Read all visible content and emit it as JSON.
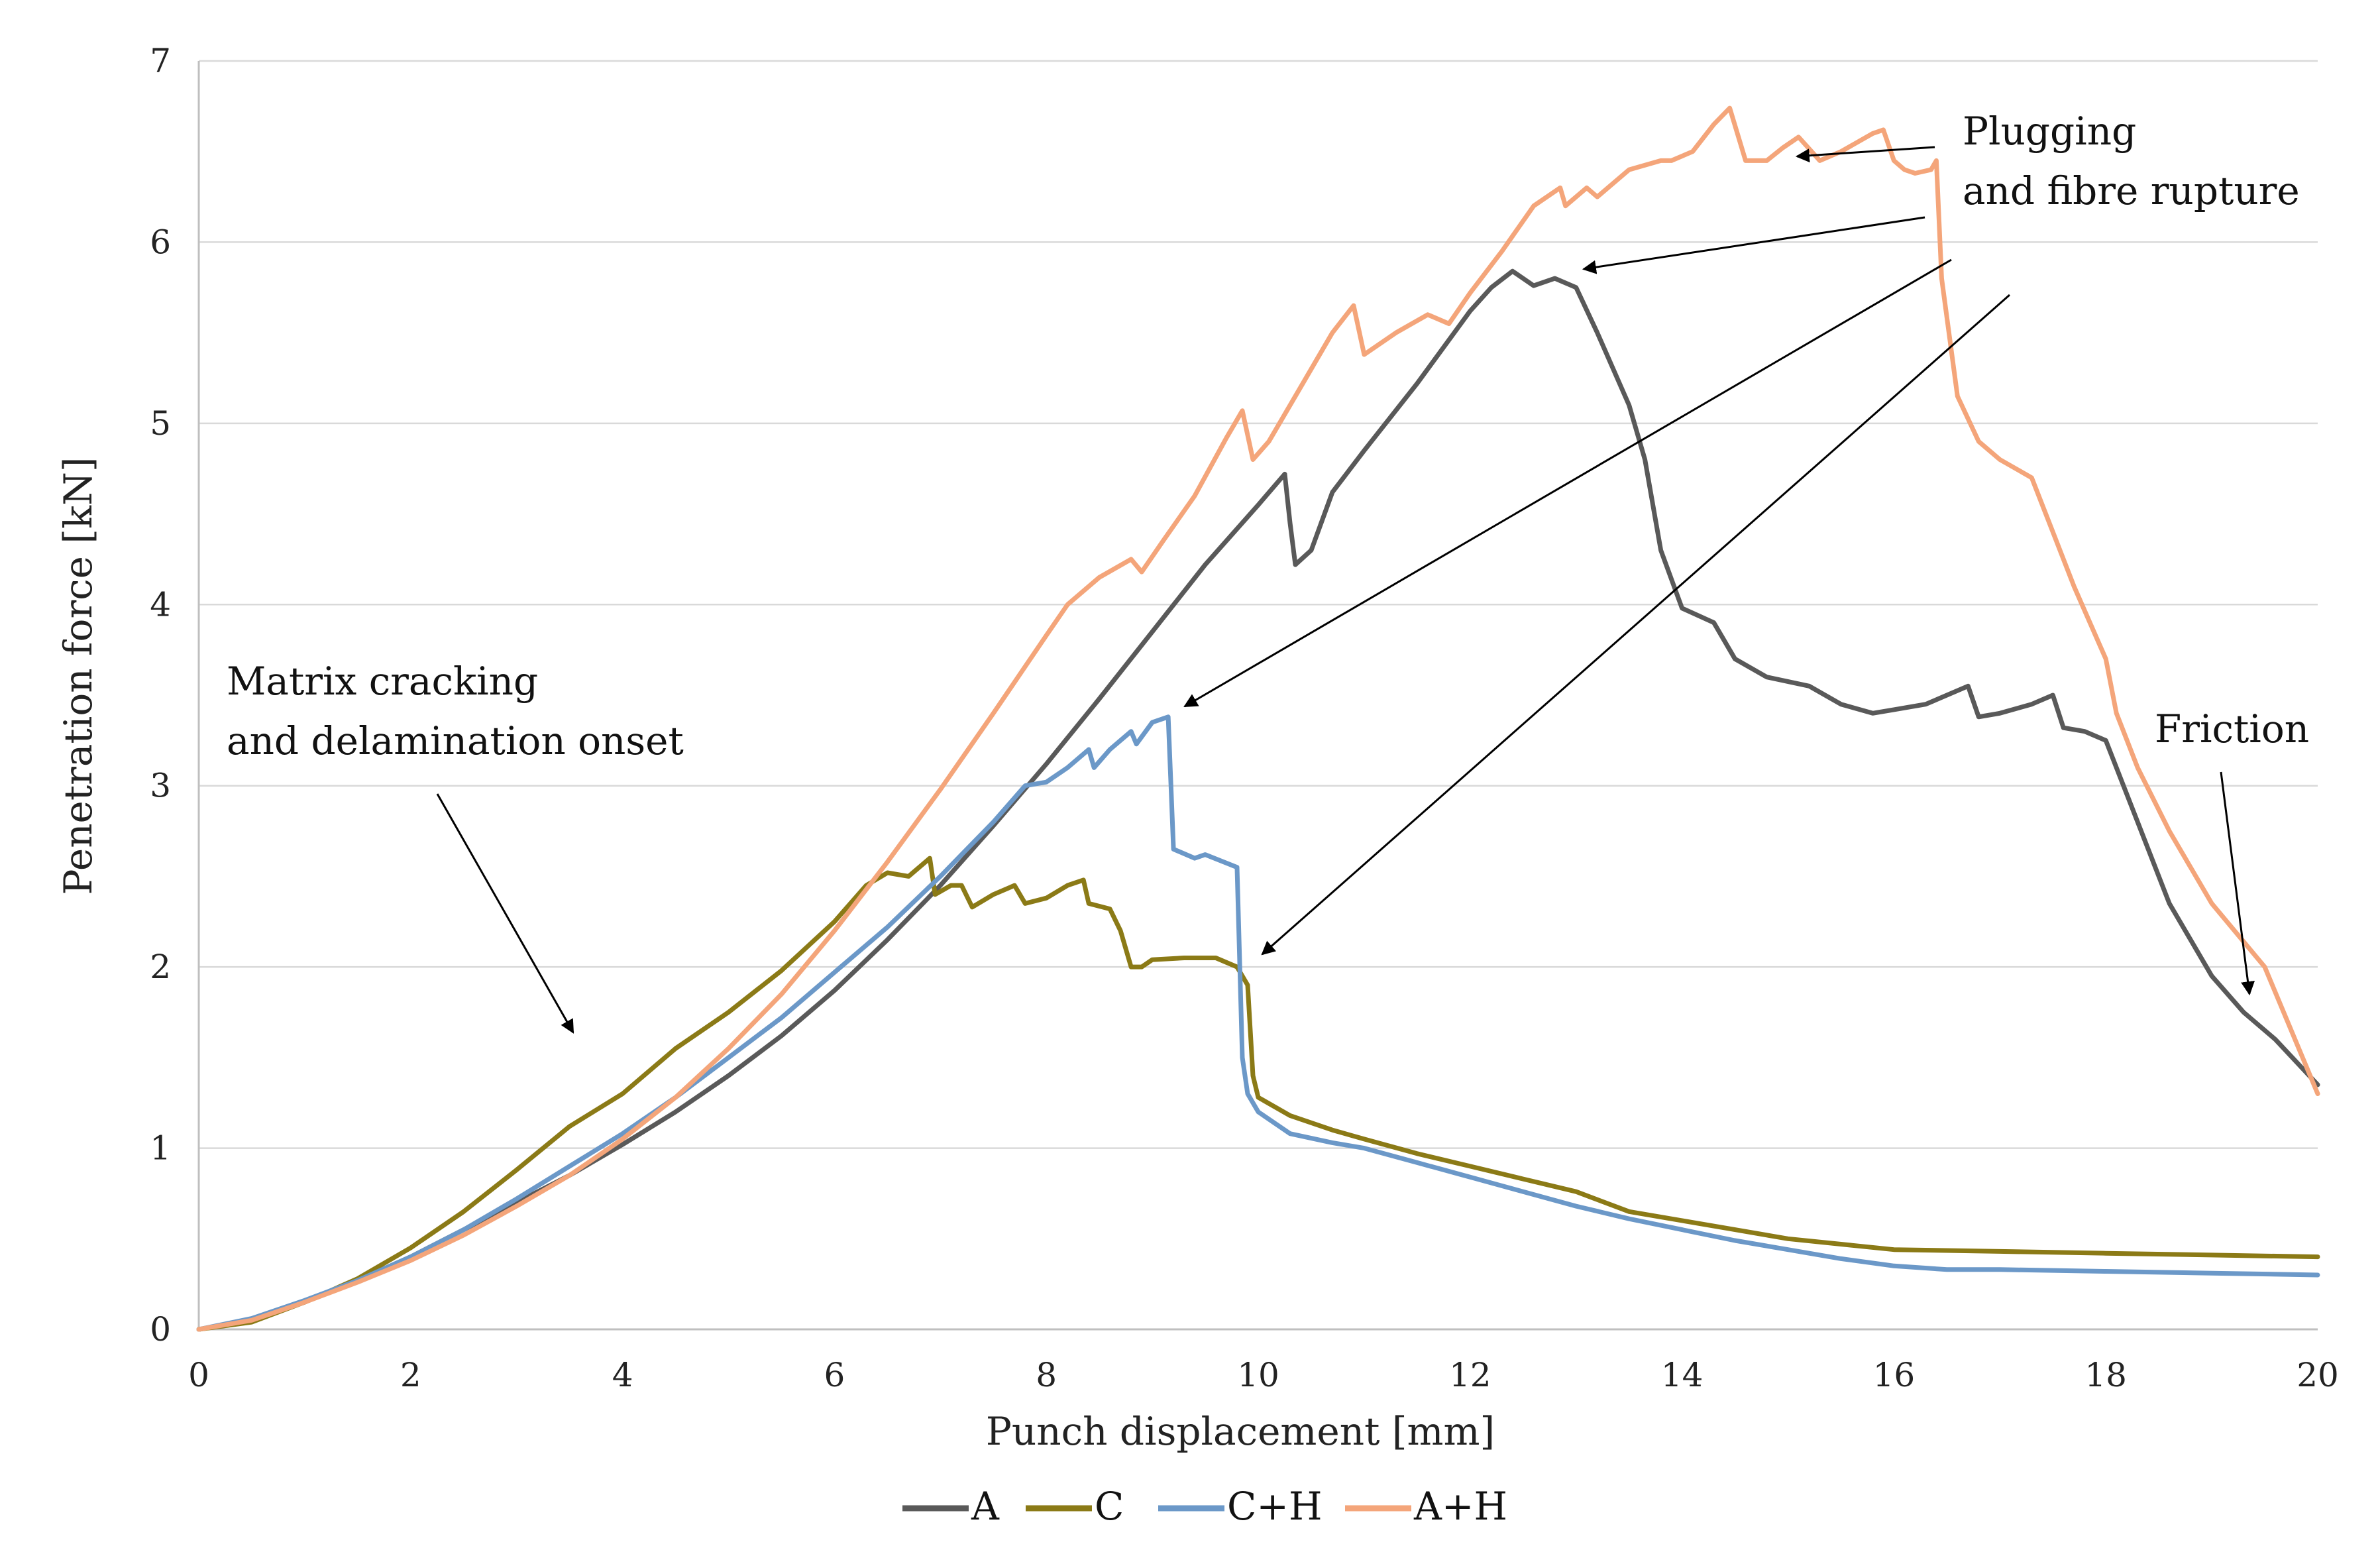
{
  "chart_data": {
    "type": "line",
    "title": "",
    "xlabel": "Punch displacement [mm]",
    "ylabel": "Penetration force [kN]",
    "xlim": [
      0,
      20
    ],
    "ylim": [
      0,
      7
    ],
    "xticks": [
      "0",
      "2",
      "4",
      "6",
      "8",
      "10",
      "12",
      "14",
      "16",
      "18",
      "20"
    ],
    "yticks": [
      "0",
      "1",
      "2",
      "3",
      "4",
      "5",
      "6",
      "7"
    ],
    "grid": "horizontal",
    "legend_position": "bottom",
    "series": [
      {
        "name": "A",
        "color": "#595959",
        "points": [
          [
            0,
            0
          ],
          [
            0.5,
            0.05
          ],
          [
            1,
            0.15
          ],
          [
            1.5,
            0.27
          ],
          [
            2,
            0.4
          ],
          [
            2.5,
            0.55
          ],
          [
            3,
            0.7
          ],
          [
            3.5,
            0.85
          ],
          [
            4,
            1.02
          ],
          [
            4.5,
            1.2
          ],
          [
            5,
            1.4
          ],
          [
            5.5,
            1.62
          ],
          [
            6,
            1.87
          ],
          [
            6.5,
            2.15
          ],
          [
            7,
            2.45
          ],
          [
            7.5,
            2.78
          ],
          [
            8,
            3.12
          ],
          [
            8.5,
            3.48
          ],
          [
            9,
            3.85
          ],
          [
            9.5,
            4.22
          ],
          [
            10,
            4.55
          ],
          [
            10.25,
            4.72
          ],
          [
            10.3,
            4.45
          ],
          [
            10.35,
            4.22
          ],
          [
            10.5,
            4.3
          ],
          [
            10.7,
            4.62
          ],
          [
            11,
            4.85
          ],
          [
            11.5,
            5.22
          ],
          [
            12,
            5.62
          ],
          [
            12.2,
            5.75
          ],
          [
            12.4,
            5.84
          ],
          [
            12.6,
            5.76
          ],
          [
            12.8,
            5.8
          ],
          [
            13,
            5.75
          ],
          [
            13.2,
            5.5
          ],
          [
            13.5,
            5.1
          ],
          [
            13.65,
            4.8
          ],
          [
            13.8,
            4.3
          ],
          [
            14,
            3.98
          ],
          [
            14.3,
            3.9
          ],
          [
            14.5,
            3.7
          ],
          [
            14.8,
            3.6
          ],
          [
            15.2,
            3.55
          ],
          [
            15.5,
            3.45
          ],
          [
            15.8,
            3.4
          ],
          [
            16,
            3.42
          ],
          [
            16.3,
            3.45
          ],
          [
            16.7,
            3.55
          ],
          [
            16.8,
            3.38
          ],
          [
            17,
            3.4
          ],
          [
            17.3,
            3.45
          ],
          [
            17.5,
            3.5
          ],
          [
            17.6,
            3.32
          ],
          [
            17.8,
            3.3
          ],
          [
            18,
            3.25
          ],
          [
            18.3,
            2.8
          ],
          [
            18.6,
            2.35
          ],
          [
            19,
            1.95
          ],
          [
            19.3,
            1.75
          ],
          [
            19.6,
            1.6
          ],
          [
            20,
            1.35
          ]
        ]
      },
      {
        "name": "C",
        "color": "#8b7a16",
        "points": [
          [
            0,
            0
          ],
          [
            0.5,
            0.04
          ],
          [
            1,
            0.15
          ],
          [
            1.5,
            0.28
          ],
          [
            2,
            0.45
          ],
          [
            2.5,
            0.65
          ],
          [
            3,
            0.88
          ],
          [
            3.5,
            1.12
          ],
          [
            4,
            1.3
          ],
          [
            4.5,
            1.55
          ],
          [
            5,
            1.75
          ],
          [
            5.5,
            1.98
          ],
          [
            6,
            2.25
          ],
          [
            6.3,
            2.45
          ],
          [
            6.5,
            2.52
          ],
          [
            6.7,
            2.5
          ],
          [
            6.9,
            2.6
          ],
          [
            6.95,
            2.4
          ],
          [
            7.1,
            2.45
          ],
          [
            7.2,
            2.45
          ],
          [
            7.3,
            2.33
          ],
          [
            7.5,
            2.4
          ],
          [
            7.7,
            2.45
          ],
          [
            7.8,
            2.35
          ],
          [
            8,
            2.38
          ],
          [
            8.2,
            2.45
          ],
          [
            8.35,
            2.48
          ],
          [
            8.4,
            2.35
          ],
          [
            8.6,
            2.32
          ],
          [
            8.7,
            2.2
          ],
          [
            8.8,
            2.0
          ],
          [
            8.9,
            2.0
          ],
          [
            9,
            2.04
          ],
          [
            9.3,
            2.05
          ],
          [
            9.6,
            2.05
          ],
          [
            9.8,
            2.0
          ],
          [
            9.9,
            1.9
          ],
          [
            9.95,
            1.4
          ],
          [
            10,
            1.28
          ],
          [
            10.3,
            1.18
          ],
          [
            10.7,
            1.1
          ],
          [
            11,
            1.05
          ],
          [
            11.5,
            0.97
          ],
          [
            12,
            0.9
          ],
          [
            12.5,
            0.83
          ],
          [
            13,
            0.76
          ],
          [
            13.5,
            0.65
          ],
          [
            14,
            0.6
          ],
          [
            14.5,
            0.55
          ],
          [
            15,
            0.5
          ],
          [
            15.5,
            0.47
          ],
          [
            16,
            0.44
          ],
          [
            17,
            0.43
          ],
          [
            18,
            0.42
          ],
          [
            19,
            0.41
          ],
          [
            20,
            0.4
          ]
        ]
      },
      {
        "name": "C+H",
        "color": "#6b98c8",
        "points": [
          [
            0,
            0
          ],
          [
            0.5,
            0.06
          ],
          [
            1,
            0.16
          ],
          [
            1.5,
            0.27
          ],
          [
            2,
            0.4
          ],
          [
            2.5,
            0.55
          ],
          [
            3,
            0.72
          ],
          [
            3.5,
            0.9
          ],
          [
            4,
            1.08
          ],
          [
            4.5,
            1.28
          ],
          [
            5,
            1.5
          ],
          [
            5.5,
            1.72
          ],
          [
            6,
            1.97
          ],
          [
            6.5,
            2.22
          ],
          [
            7,
            2.5
          ],
          [
            7.5,
            2.8
          ],
          [
            7.8,
            3.0
          ],
          [
            8,
            3.02
          ],
          [
            8.2,
            3.1
          ],
          [
            8.4,
            3.2
          ],
          [
            8.45,
            3.1
          ],
          [
            8.6,
            3.2
          ],
          [
            8.8,
            3.3
          ],
          [
            8.85,
            3.23
          ],
          [
            9,
            3.35
          ],
          [
            9.15,
            3.38
          ],
          [
            9.2,
            2.65
          ],
          [
            9.4,
            2.6
          ],
          [
            9.5,
            2.62
          ],
          [
            9.8,
            2.55
          ],
          [
            9.85,
            1.5
          ],
          [
            9.9,
            1.3
          ],
          [
            10,
            1.2
          ],
          [
            10.3,
            1.08
          ],
          [
            10.7,
            1.03
          ],
          [
            11,
            1.0
          ],
          [
            11.5,
            0.92
          ],
          [
            12,
            0.84
          ],
          [
            12.5,
            0.76
          ],
          [
            13,
            0.68
          ],
          [
            13.5,
            0.61
          ],
          [
            14,
            0.55
          ],
          [
            14.5,
            0.49
          ],
          [
            15,
            0.44
          ],
          [
            15.5,
            0.39
          ],
          [
            16,
            0.35
          ],
          [
            16.5,
            0.33
          ],
          [
            17,
            0.33
          ],
          [
            18,
            0.32
          ],
          [
            19,
            0.31
          ],
          [
            20,
            0.3
          ]
        ]
      },
      {
        "name": "A+H",
        "color": "#f4a57a",
        "points": [
          [
            0,
            0
          ],
          [
            0.5,
            0.05
          ],
          [
            1,
            0.15
          ],
          [
            1.5,
            0.26
          ],
          [
            2,
            0.38
          ],
          [
            2.5,
            0.52
          ],
          [
            3,
            0.68
          ],
          [
            3.5,
            0.85
          ],
          [
            4,
            1.05
          ],
          [
            4.5,
            1.28
          ],
          [
            5,
            1.55
          ],
          [
            5.5,
            1.85
          ],
          [
            6,
            2.2
          ],
          [
            6.5,
            2.58
          ],
          [
            7,
            2.98
          ],
          [
            7.5,
            3.4
          ],
          [
            8,
            3.83
          ],
          [
            8.2,
            4.0
          ],
          [
            8.5,
            4.15
          ],
          [
            8.8,
            4.25
          ],
          [
            8.9,
            4.18
          ],
          [
            9.1,
            4.35
          ],
          [
            9.4,
            4.6
          ],
          [
            9.7,
            4.92
          ],
          [
            9.85,
            5.07
          ],
          [
            9.95,
            4.8
          ],
          [
            10.1,
            4.9
          ],
          [
            10.4,
            5.2
          ],
          [
            10.7,
            5.5
          ],
          [
            10.9,
            5.65
          ],
          [
            11,
            5.38
          ],
          [
            11.3,
            5.5
          ],
          [
            11.6,
            5.6
          ],
          [
            11.8,
            5.55
          ],
          [
            12,
            5.72
          ],
          [
            12.3,
            5.95
          ],
          [
            12.6,
            6.2
          ],
          [
            12.85,
            6.3
          ],
          [
            12.9,
            6.2
          ],
          [
            13.1,
            6.3
          ],
          [
            13.2,
            6.25
          ],
          [
            13.5,
            6.4
          ],
          [
            13.8,
            6.45
          ],
          [
            13.9,
            6.45
          ],
          [
            14.1,
            6.5
          ],
          [
            14.3,
            6.65
          ],
          [
            14.45,
            6.74
          ],
          [
            14.6,
            6.45
          ],
          [
            14.8,
            6.45
          ],
          [
            14.95,
            6.52
          ],
          [
            15.1,
            6.58
          ],
          [
            15.3,
            6.45
          ],
          [
            15.5,
            6.5
          ],
          [
            15.8,
            6.6
          ],
          [
            15.9,
            6.62
          ],
          [
            16.0,
            6.45
          ],
          [
            16.1,
            6.4
          ],
          [
            16.2,
            6.38
          ],
          [
            16.35,
            6.4
          ],
          [
            16.4,
            6.45
          ],
          [
            16.45,
            5.8
          ],
          [
            16.6,
            5.15
          ],
          [
            16.8,
            4.9
          ],
          [
            17,
            4.8
          ],
          [
            17.3,
            4.7
          ],
          [
            17.5,
            4.4
          ],
          [
            17.7,
            4.1
          ],
          [
            18,
            3.7
          ],
          [
            18.1,
            3.4
          ],
          [
            18.3,
            3.1
          ],
          [
            18.6,
            2.75
          ],
          [
            19,
            2.35
          ],
          [
            19.5,
            2.0
          ],
          [
            20,
            1.3
          ]
        ]
      }
    ],
    "annotations": [
      {
        "lines": [
          "Plugging",
          "and fibre rupture"
        ]
      },
      {
        "lines": [
          "Matrix cracking",
          "and delamination onset"
        ]
      },
      {
        "lines": [
          "Friction"
        ]
      }
    ]
  }
}
